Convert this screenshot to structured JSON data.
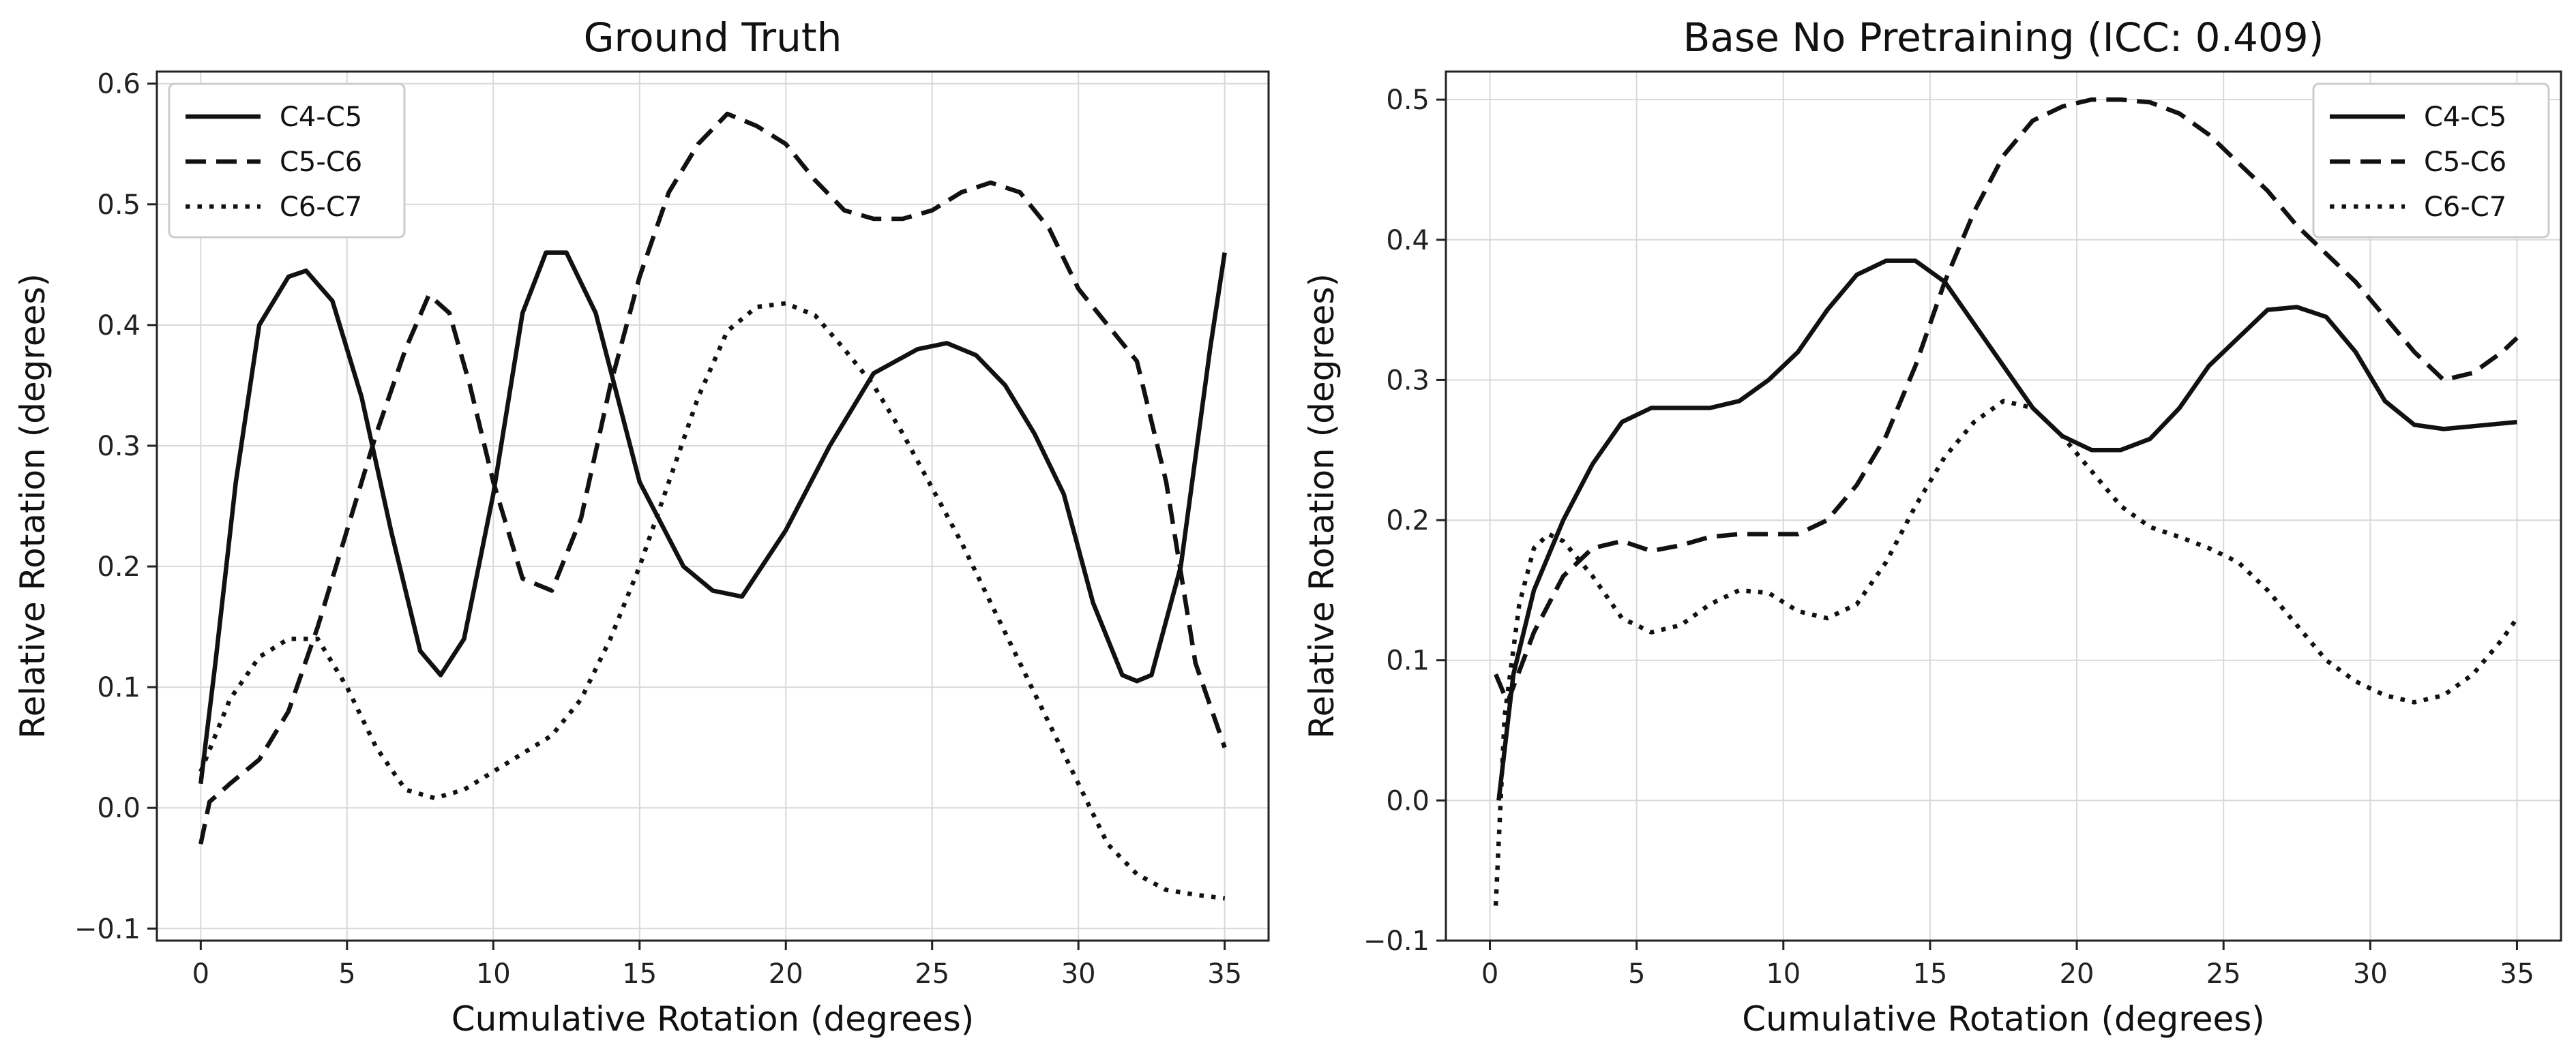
{
  "chart_data": [
    {
      "type": "line",
      "title": "Ground Truth",
      "xlabel": "Cumulative Rotation (degrees)",
      "ylabel": "Relative Rotation (degrees)",
      "xlim": [
        -1.5,
        36.5
      ],
      "ylim": [
        -0.11,
        0.61
      ],
      "xticks": [
        0,
        5,
        10,
        15,
        20,
        25,
        30,
        35
      ],
      "yticks": [
        -0.1,
        0.0,
        0.1,
        0.2,
        0.3,
        0.4,
        0.5,
        0.6
      ],
      "ytick_labels": [
        "−0.1",
        "0.0",
        "0.1",
        "0.2",
        "0.3",
        "0.4",
        "0.5",
        "0.6"
      ],
      "grid": true,
      "legend_position": "top-left",
      "series": [
        {
          "name": "C4-C5",
          "style": "solid",
          "x": [
            0.0,
            0.5,
            1.2,
            2.0,
            3.0,
            3.6,
            4.5,
            5.5,
            6.5,
            7.5,
            8.2,
            9.0,
            10.0,
            11.0,
            11.8,
            12.5,
            13.5,
            15.0,
            16.5,
            17.5,
            18.5,
            20.0,
            21.5,
            23.0,
            24.5,
            25.5,
            26.5,
            27.5,
            28.5,
            29.5,
            30.5,
            31.5,
            32.0,
            32.5,
            33.5,
            34.5,
            35.0
          ],
          "y": [
            0.02,
            0.12,
            0.27,
            0.4,
            0.44,
            0.445,
            0.42,
            0.34,
            0.23,
            0.13,
            0.11,
            0.14,
            0.26,
            0.41,
            0.46,
            0.46,
            0.41,
            0.27,
            0.2,
            0.18,
            0.175,
            0.23,
            0.3,
            0.36,
            0.38,
            0.385,
            0.375,
            0.35,
            0.31,
            0.26,
            0.17,
            0.11,
            0.105,
            0.11,
            0.2,
            0.38,
            0.46
          ]
        },
        {
          "name": "C5-C6",
          "style": "dashed",
          "x": [
            0.0,
            0.3,
            1.0,
            2.0,
            3.0,
            4.0,
            5.0,
            6.0,
            7.0,
            7.8,
            8.5,
            9.2,
            10.0,
            11.0,
            12.0,
            13.0,
            14.0,
            15.0,
            16.0,
            17.0,
            18.0,
            19.0,
            20.0,
            21.0,
            22.0,
            23.0,
            24.0,
            25.0,
            26.0,
            27.0,
            28.0,
            29.0,
            30.0,
            31.0,
            32.0,
            33.0,
            34.0,
            35.0
          ],
          "y": [
            -0.03,
            0.005,
            0.02,
            0.04,
            0.08,
            0.15,
            0.23,
            0.31,
            0.38,
            0.425,
            0.41,
            0.35,
            0.27,
            0.19,
            0.18,
            0.24,
            0.35,
            0.44,
            0.51,
            0.55,
            0.575,
            0.565,
            0.55,
            0.52,
            0.495,
            0.488,
            0.488,
            0.495,
            0.51,
            0.518,
            0.51,
            0.48,
            0.43,
            0.4,
            0.37,
            0.27,
            0.12,
            0.05
          ]
        },
        {
          "name": "C6-C7",
          "style": "dotted",
          "x": [
            0.0,
            1.0,
            2.0,
            3.0,
            4.0,
            5.0,
            6.0,
            7.0,
            8.0,
            9.0,
            10.0,
            11.0,
            12.0,
            13.0,
            14.0,
            15.0,
            16.0,
            17.0,
            18.0,
            19.0,
            20.0,
            21.0,
            22.0,
            23.0,
            24.0,
            25.0,
            26.0,
            27.0,
            28.0,
            29.0,
            30.0,
            31.0,
            32.0,
            33.0,
            34.0,
            35.0
          ],
          "y": [
            0.03,
            0.09,
            0.125,
            0.14,
            0.14,
            0.1,
            0.05,
            0.015,
            0.008,
            0.015,
            0.03,
            0.045,
            0.06,
            0.09,
            0.14,
            0.2,
            0.27,
            0.34,
            0.395,
            0.415,
            0.418,
            0.408,
            0.38,
            0.35,
            0.31,
            0.265,
            0.22,
            0.17,
            0.12,
            0.07,
            0.02,
            -0.03,
            -0.055,
            -0.068,
            -0.072,
            -0.075
          ]
        }
      ]
    },
    {
      "type": "line",
      "title": "Base No Pretraining (ICC: 0.409)",
      "xlabel": "Cumulative Rotation (degrees)",
      "ylabel": "Relative Rotation (degrees)",
      "xlim": [
        -1.5,
        36.5
      ],
      "ylim": [
        -0.1,
        0.52
      ],
      "xticks": [
        0,
        5,
        10,
        15,
        20,
        25,
        30,
        35
      ],
      "yticks": [
        -0.1,
        0.0,
        0.1,
        0.2,
        0.3,
        0.4,
        0.5
      ],
      "ytick_labels": [
        "−0.1",
        "0.0",
        "0.1",
        "0.2",
        "0.3",
        "0.4",
        "0.5"
      ],
      "grid": true,
      "legend_position": "top-right",
      "series": [
        {
          "name": "C4-C5",
          "style": "solid",
          "x": [
            0.3,
            0.8,
            1.5,
            2.5,
            3.5,
            4.5,
            5.5,
            6.5,
            7.5,
            8.5,
            9.5,
            10.5,
            11.5,
            12.5,
            13.5,
            14.5,
            15.5,
            16.5,
            17.5,
            18.5,
            19.5,
            20.5,
            21.5,
            22.5,
            23.5,
            24.5,
            25.5,
            26.5,
            27.5,
            28.5,
            29.5,
            30.5,
            31.5,
            32.5,
            33.5,
            34.5,
            35.0
          ],
          "y": [
            0.0,
            0.09,
            0.15,
            0.2,
            0.24,
            0.27,
            0.28,
            0.28,
            0.28,
            0.285,
            0.3,
            0.32,
            0.35,
            0.375,
            0.385,
            0.385,
            0.37,
            0.34,
            0.31,
            0.28,
            0.26,
            0.25,
            0.25,
            0.258,
            0.28,
            0.31,
            0.33,
            0.35,
            0.352,
            0.345,
            0.32,
            0.285,
            0.268,
            0.265,
            0.267,
            0.269,
            0.27
          ]
        },
        {
          "name": "C5-C6",
          "style": "dashed",
          "x": [
            0.2,
            0.6,
            1.5,
            2.5,
            3.5,
            4.5,
            5.5,
            6.5,
            7.5,
            8.5,
            9.5,
            10.5,
            11.5,
            12.5,
            13.5,
            14.5,
            15.5,
            16.5,
            17.5,
            18.5,
            19.5,
            20.5,
            21.5,
            22.5,
            23.5,
            24.5,
            25.5,
            26.5,
            27.5,
            28.5,
            29.5,
            30.5,
            31.5,
            32.5,
            33.5,
            34.5,
            35.0
          ],
          "y": [
            0.09,
            0.07,
            0.12,
            0.16,
            0.18,
            0.185,
            0.178,
            0.182,
            0.188,
            0.19,
            0.19,
            0.19,
            0.2,
            0.225,
            0.26,
            0.31,
            0.37,
            0.42,
            0.46,
            0.485,
            0.495,
            0.5,
            0.5,
            0.498,
            0.49,
            0.475,
            0.455,
            0.435,
            0.41,
            0.39,
            0.37,
            0.345,
            0.32,
            0.3,
            0.305,
            0.32,
            0.33
          ]
        },
        {
          "name": "C6-C7",
          "style": "dotted",
          "x": [
            0.2,
            0.5,
            1.0,
            1.5,
            2.0,
            2.5,
            3.5,
            4.5,
            5.5,
            6.5,
            7.5,
            8.5,
            9.5,
            10.5,
            11.5,
            12.5,
            13.5,
            14.5,
            15.5,
            16.5,
            17.5,
            18.5,
            19.5,
            20.5,
            21.5,
            22.5,
            23.5,
            24.5,
            25.5,
            26.5,
            27.5,
            28.5,
            29.5,
            30.5,
            31.5,
            32.5,
            33.5,
            34.5,
            35.0
          ],
          "y": [
            -0.075,
            0.06,
            0.14,
            0.18,
            0.19,
            0.185,
            0.16,
            0.13,
            0.12,
            0.125,
            0.14,
            0.15,
            0.148,
            0.135,
            0.13,
            0.14,
            0.17,
            0.21,
            0.245,
            0.27,
            0.285,
            0.28,
            0.26,
            0.235,
            0.21,
            0.195,
            0.188,
            0.18,
            0.17,
            0.15,
            0.125,
            0.1,
            0.085,
            0.075,
            0.07,
            0.075,
            0.09,
            0.115,
            0.13
          ]
        }
      ]
    }
  ]
}
